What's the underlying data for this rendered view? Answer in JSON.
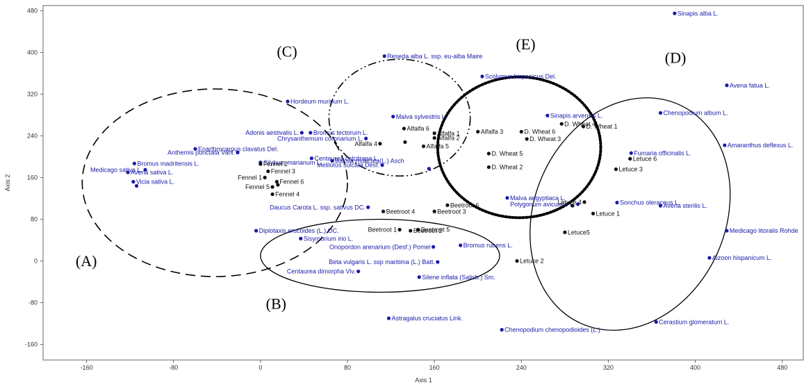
{
  "chart_data": {
    "type": "scatter",
    "xlabel": "Axis 1",
    "ylabel": "Axis 2",
    "xlim": [
      -200,
      500
    ],
    "ylim": [
      -190,
      490
    ],
    "x_ticks": [
      -160,
      -80,
      0,
      80,
      160,
      240,
      320,
      400,
      480
    ],
    "y_ticks": [
      -160,
      -80,
      0,
      80,
      160,
      240,
      320,
      400,
      480
    ],
    "grid": false,
    "colors": {
      "species": "#1a1aa8",
      "sites": "#111111",
      "ellipse": "#000000"
    },
    "series": [
      {
        "name": "species",
        "points": [
          {
            "label": "Sinapis alba L.",
            "x": 381,
            "y": 475
          },
          {
            "label": "Reseda  alba L. ssp. eu-alba Maire",
            "x": 114,
            "y": 393
          },
          {
            "label": "Scolymus hispanicus Del.",
            "x": 204,
            "y": 354
          },
          {
            "label": "Avena fatua L.",
            "x": 429,
            "y": 337
          },
          {
            "label": "Hordeum murinum L.",
            "x": 25,
            "y": 306
          },
          {
            "label": "Chenopodium album L.",
            "x": 368,
            "y": 284
          },
          {
            "label": "Sinapis arvensis L.",
            "x": 264,
            "y": 279
          },
          {
            "label": "Malva sylvestris L.",
            "x": 122,
            "y": 277
          },
          {
            "label": "Adonis aestivalis L.",
            "x": 38,
            "y": 246
          },
          {
            "label": "Bromus tectorum L.",
            "x": 46,
            "y": 246
          },
          {
            "label": "Chrysanthemum coronarium L.",
            "x": 97,
            "y": 235
          },
          {
            "label": "Enarthrocarpus clavatus Del.",
            "x": -60,
            "y": 215
          },
          {
            "label": "Anthemis punctata Vahl.",
            "x": -21,
            "y": 208
          },
          {
            "label": "Centaurea calcitrapa L.",
            "x": 47,
            "y": 197
          },
          {
            "label": "Amaranthus deflexus L.",
            "x": 427,
            "y": 222
          },
          {
            "label": "Fumaria officinalis L.",
            "x": 341,
            "y": 207
          },
          {
            "label": "Silybum marianum L.",
            "x": 0,
            "y": 189
          },
          {
            "label": "Bassia muricata(L.) Asch",
            "x": 66,
            "y": 192
          },
          {
            "label": "Melilotus sulcata Desf.",
            "x": 112,
            "y": 184
          },
          {
            "label": "Bromus madritensis L.",
            "x": -116,
            "y": 187
          },
          {
            "label": "Medicago sativa L.",
            "x": -106,
            "y": 175
          },
          {
            "label": "Avena sativa L.",
            "x": -122,
            "y": 170
          },
          {
            "label": "Vicia sativa L.",
            "x": -117,
            "y": 152
          },
          {
            "label": "",
            "x": 155,
            "y": 177
          },
          {
            "label": "",
            "x": -114,
            "y": 144
          },
          {
            "label": "Malva aegyptiaca L.",
            "x": 227,
            "y": 121
          },
          {
            "label": "Sonchus oleraceus L.",
            "x": 328,
            "y": 112
          },
          {
            "label": "Polygonum aviculare L.",
            "x": 292,
            "y": 109
          },
          {
            "label": "Avena sterilis L.",
            "x": 368,
            "y": 106
          },
          {
            "label": "Daucus Carota L. ssp. sativus DC.",
            "x": 99,
            "y": 103
          },
          {
            "label": "Diplotaxis erucoides (L.) OC.",
            "x": -4,
            "y": 58
          },
          {
            "label": "Medicago litoralis  Rohde",
            "x": 429,
            "y": 58
          },
          {
            "label": "Sisymbrium irio L.",
            "x": 37,
            "y": 43
          },
          {
            "label": "Onopordon arenarium (Desf.) Pomel",
            "x": 159,
            "y": 27
          },
          {
            "label": "Bromus rubens L.",
            "x": 184,
            "y": 30
          },
          {
            "label": "Aizoon hispanicum L.",
            "x": 413,
            "y": 6
          },
          {
            "label": "Beta vulgaris L. ssp maritima (L.) Batt.",
            "x": 163,
            "y": -2
          },
          {
            "label": "Centaurea dimorpha Viv.",
            "x": 90,
            "y": -20
          },
          {
            "label": "Silene inflata (Salisb.) Sm.",
            "x": 146,
            "y": -31
          },
          {
            "label": "Astragalus cruciatus Link.",
            "x": 118,
            "y": -110
          },
          {
            "label": "Cerastium glomeratum L.",
            "x": 364,
            "y": -117
          },
          {
            "label": "Chenopodium chenopodioides (L.)",
            "x": 222,
            "y": -132
          }
        ]
      },
      {
        "name": "sites",
        "points": [
          {
            "label": "D. Wheat 4",
            "x": 277,
            "y": 263
          },
          {
            "label": "Alfalfa 6",
            "x": 132,
            "y": 254
          },
          {
            "label": "D. Wheat 1",
            "x": 297,
            "y": 258
          },
          {
            "label": "Alfalfa 3",
            "x": 200,
            "y": 248
          },
          {
            "label": "D. Wheat 6",
            "x": 240,
            "y": 248
          },
          {
            "label": "Alfalfa 1",
            "x": 160,
            "y": 245
          },
          {
            "label": "Alfalfa 2",
            "x": 160,
            "y": 236
          },
          {
            "label": "D. Wheat 3",
            "x": 245,
            "y": 234
          },
          {
            "label": "Alfalfa 4",
            "x": 110,
            "y": 225
          },
          {
            "label": "",
            "x": 133,
            "y": 228
          },
          {
            "label": "Alfalfa 5",
            "x": 150,
            "y": 220
          },
          {
            "label": "D. Wheat 5",
            "x": 210,
            "y": 206
          },
          {
            "label": "Fennel 2",
            "x": 0,
            "y": 186
          },
          {
            "label": "D. Wheat 2",
            "x": 210,
            "y": 180
          },
          {
            "label": "Letuce 3",
            "x": 327,
            "y": 176
          },
          {
            "label": "Fennel 3",
            "x": 7,
            "y": 172
          },
          {
            "label": "Letuce 6",
            "x": 340,
            "y": 196
          },
          {
            "label": "Fennel 1",
            "x": 4,
            "y": 160
          },
          {
            "label": "Fennel 6",
            "x": 15,
            "y": 152
          },
          {
            "label": "",
            "x": 16,
            "y": 146
          },
          {
            "label": "Fennel 5",
            "x": 11,
            "y": 142
          },
          {
            "label": "Fennel 4",
            "x": 11,
            "y": 128
          },
          {
            "label": "Letuce 4",
            "x": 298,
            "y": 113
          },
          {
            "label": "",
            "x": 287,
            "y": 106
          },
          {
            "label": "Letuce 1",
            "x": 306,
            "y": 91
          },
          {
            "label": "Beetroot 6",
            "x": 172,
            "y": 107
          },
          {
            "label": "Beetroot 4",
            "x": 113,
            "y": 95
          },
          {
            "label": "Beetroot 3",
            "x": 160,
            "y": 95
          },
          {
            "label": "Beetroot 1",
            "x": 128,
            "y": 60
          },
          {
            "label": "Beetroot 5",
            "x": 145,
            "y": 60
          },
          {
            "label": "Beetroot 2",
            "x": 138,
            "y": 58
          },
          {
            "label": "Letuce5",
            "x": 280,
            "y": 55
          },
          {
            "label": "Letuce 2",
            "x": 236,
            "y": 0
          }
        ]
      }
    ],
    "groups": [
      {
        "label": "(A)",
        "center": [
          -42,
          150
        ],
        "rx": 122,
        "ry": 180,
        "style": "dashed"
      },
      {
        "label": "(B)",
        "center": [
          110,
          10
        ],
        "rx": 110,
        "ry": 70,
        "style": "solid"
      },
      {
        "label": "(C)",
        "center": [
          128,
          275
        ],
        "rx": 65,
        "ry": 112,
        "style": "dash-dot-dot"
      },
      {
        "label": "(E)",
        "center": [
          238,
          218
        ],
        "rx": 75,
        "ry": 135,
        "style": "dotted"
      },
      {
        "label": "(D)",
        "center": [
          340,
          90
        ],
        "rx": 88,
        "ry": 230,
        "style": "solid",
        "rotation": 24
      }
    ]
  }
}
